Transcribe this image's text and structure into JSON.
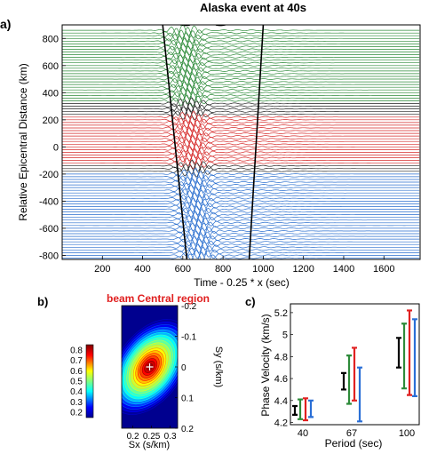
{
  "panels": {
    "a": {
      "label": "a)",
      "title": "Alaska event at 40s",
      "xlabel": "Time - 0.25 * x (sec)",
      "ylabel": "Relative Epicentral Distance (km)",
      "xticks": [
        "200",
        "400",
        "600",
        "800",
        "1000",
        "1200",
        "1400",
        "1600"
      ],
      "yticks": [
        "800",
        "600",
        "400",
        "200",
        "0",
        "-200",
        "-400",
        "-600",
        "-800"
      ]
    },
    "b": {
      "label": "b)",
      "title": "beam Central region",
      "xlabel": "Sx (s/km)",
      "ylabel": "Sy (s/km)",
      "xticks": [
        "0.2",
        "0.25",
        "0.3"
      ],
      "yticks": [
        "-0.2",
        "-0.1",
        "0",
        "0.1",
        "0.2"
      ],
      "colorbar_ticks": [
        "0.8",
        "0.7",
        "0.6",
        "0.5",
        "0.4",
        "0.3",
        "0.2"
      ]
    },
    "c": {
      "label": "c)",
      "xlabel": "Period (sec)",
      "ylabel": "Phase Velocity (km/s)",
      "xticks": [
        "40",
        "67",
        "100"
      ],
      "yticks": [
        "5.2",
        "5",
        "4.8",
        "4.6",
        "4.4",
        "4.2"
      ]
    }
  },
  "chart_data": [
    {
      "type": "line",
      "panel": "a",
      "title": "Alaska event at 40s",
      "xlabel": "Time - 0.25 * x (sec)",
      "ylabel": "Relative Epicentral Distance (km)",
      "xlim": [
        0,
        1780
      ],
      "ylim": [
        -830,
        900
      ],
      "colors": {
        "north": "#2e8b3a",
        "central": "#d62a2a",
        "south": "#2a6fcf",
        "neutral": "#222222"
      },
      "trace_groups": [
        {
          "region": "north",
          "from": 340,
          "to": 860
        },
        {
          "region": "neutral",
          "from": 240,
          "to": 330
        },
        {
          "region": "central",
          "from": -120,
          "to": 230
        },
        {
          "region": "neutral",
          "from": -190,
          "to": -130
        },
        {
          "region": "south",
          "from": -820,
          "to": -200
        }
      ],
      "window_lines": [
        {
          "x": [
            500,
            620
          ],
          "y": [
            900,
            -830
          ]
        },
        {
          "x": [
            1000,
            930
          ],
          "y": [
            900,
            -830
          ]
        }
      ],
      "signal_center_x": 650
    },
    {
      "type": "heatmap",
      "panel": "b",
      "title": "beam Central region",
      "xlabel": "Sx (s/km)",
      "ylabel": "Sy (s/km)",
      "xlim": [
        0.17,
        0.32
      ],
      "ylim": [
        -0.2,
        0.2
      ],
      "peak": {
        "sx": 0.245,
        "sy": 0.0
      },
      "colorbar_range": [
        0.15,
        0.85
      ]
    },
    {
      "type": "scatter",
      "panel": "c",
      "xlabel": "Period (sec)",
      "ylabel": "Phase Velocity (km/s)",
      "ylim": [
        4.18,
        5.28
      ],
      "categories": [
        "40",
        "67",
        "100"
      ],
      "series": [
        {
          "color": "#000000",
          "offset": -1.5,
          "values": [
            [
              4.27,
              4.35
            ],
            [
              4.5,
              4.65
            ],
            [
              4.7,
              4.97
            ]
          ]
        },
        {
          "color": "#2e8b3a",
          "offset": -0.5,
          "values": [
            [
              4.23,
              4.41
            ],
            [
              4.37,
              4.81
            ],
            [
              4.51,
              5.1
            ]
          ]
        },
        {
          "color": "#e02020",
          "offset": 0.5,
          "values": [
            [
              4.22,
              4.42
            ],
            [
              4.4,
              4.88
            ],
            [
              4.45,
              5.22
            ]
          ]
        },
        {
          "color": "#2a6fd6",
          "offset": 1.5,
          "values": [
            [
              4.25,
              4.4
            ],
            [
              4.21,
              4.7
            ],
            [
              4.44,
              5.14
            ]
          ]
        }
      ]
    }
  ]
}
